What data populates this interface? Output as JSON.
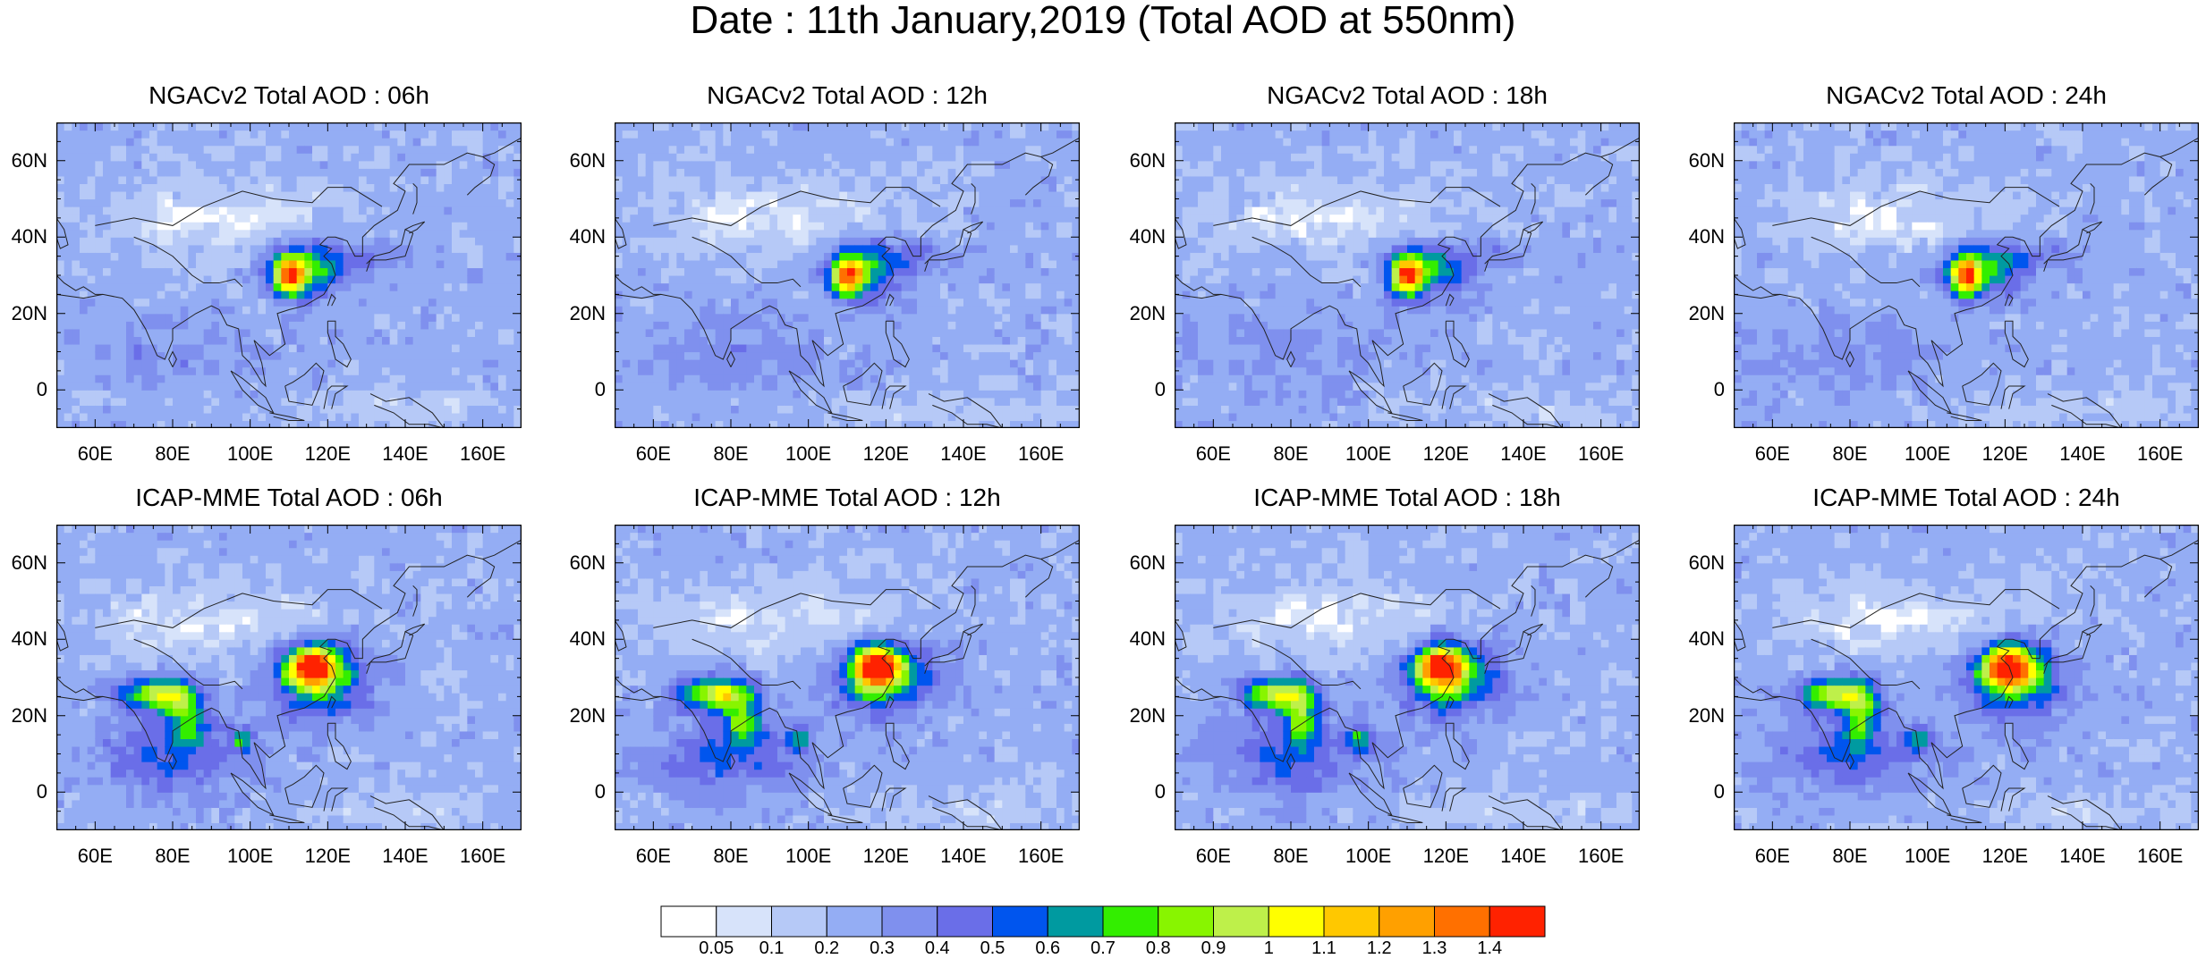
{
  "title": "Date : 11th January,2019 (Total AOD at 550nm)",
  "panels": [
    {
      "title": "NGACv2 Total AOD : 06h"
    },
    {
      "title": "NGACv2 Total AOD : 12h"
    },
    {
      "title": "NGACv2 Total AOD : 18h"
    },
    {
      "title": "NGACv2 Total AOD : 24h"
    },
    {
      "title": "ICAP-MME Total AOD : 06h"
    },
    {
      "title": "ICAP-MME Total AOD : 12h"
    },
    {
      "title": "ICAP-MME Total AOD : 18h"
    },
    {
      "title": "ICAP-MME Total AOD : 24h"
    }
  ],
  "lat_ticks": [
    "60N",
    "40N",
    "20N",
    "0"
  ],
  "lon_ticks": [
    "60E",
    "80E",
    "100E",
    "120E",
    "140E",
    "160E"
  ],
  "lat_range": [
    -10,
    70
  ],
  "lon_range": [
    50,
    170
  ],
  "colorbar": {
    "labels": [
      "0.05",
      "0.1",
      "0.2",
      "0.3",
      "0.4",
      "0.5",
      "0.6",
      "0.7",
      "0.8",
      "0.9",
      "1",
      "1.1",
      "1.2",
      "1.3",
      "1.4"
    ],
    "colors": [
      "#ffffff",
      "#d7e3fa",
      "#b6c9f7",
      "#94adf4",
      "#7f90ee",
      "#6a6ee8",
      "#0055ee",
      "#009aa0",
      "#33ee00",
      "#88f500",
      "#bef04a",
      "#ffff00",
      "#ffc800",
      "#ffa000",
      "#ff7000",
      "#ff2200"
    ]
  }
}
